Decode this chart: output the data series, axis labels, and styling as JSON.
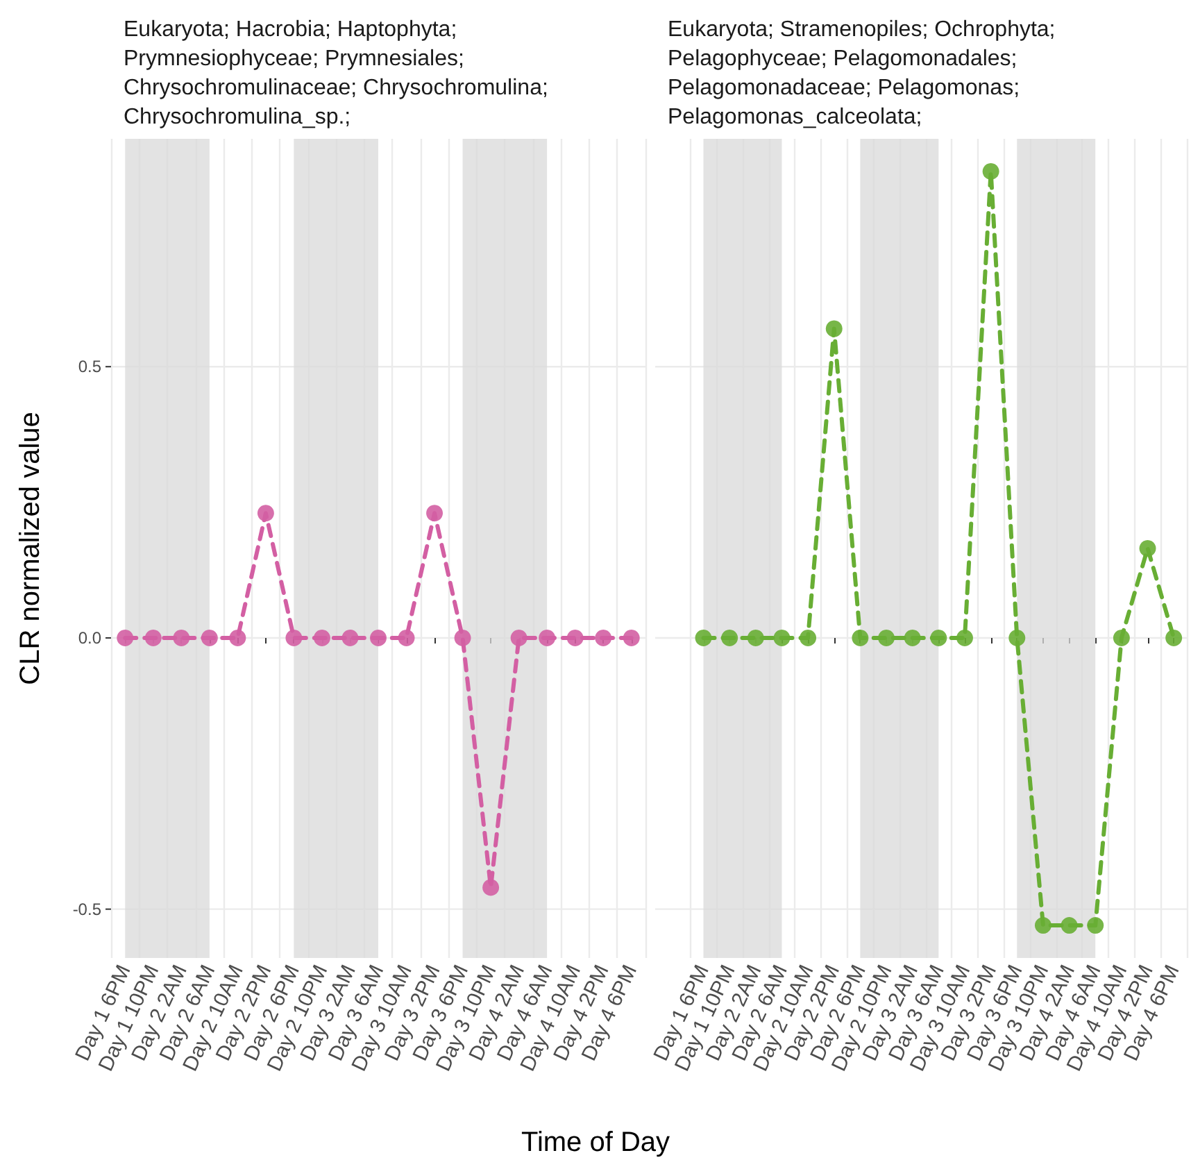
{
  "chart_data": [
    {
      "type": "line",
      "title": "Eukaryota; Hacrobia; Haptophyta; Prymnesiophyceae; Prymnesiales; Chrysochromulinaceae; Chrysochromulina; Chrysochromulina_sp.;",
      "xlabel": "Time of Day",
      "ylabel": "CLR normalized value",
      "categories": [
        "Day 1 6PM",
        "Day 1 10PM",
        "Day 2 2AM",
        "Day 2 6AM",
        "Day 2 10AM",
        "Day 2 2PM",
        "Day 2 6PM",
        "Day 2 10PM",
        "Day 3 2AM",
        "Day 3 6AM",
        "Day 3 10AM",
        "Day 3 2PM",
        "Day 3 6PM",
        "Day 3 10PM",
        "Day 4 2AM",
        "Day 4 6AM",
        "Day 4 10AM",
        "Day 4 2PM",
        "Day 4 6PM"
      ],
      "series": [
        {
          "color": "#d35fa3",
          "values": [
            0,
            0,
            0,
            0,
            0,
            0.23,
            0,
            0,
            0,
            0,
            0,
            0.23,
            0,
            -0.46,
            0,
            0,
            0,
            0,
            0
          ]
        }
      ],
      "ylim": [
        -0.59,
        0.92
      ],
      "yticks": [
        -0.5,
        {
          "value": 0,
          "label": "0.0"
        },
        0.5
      ],
      "grid": true,
      "marker": "circle",
      "line_style": "dashed",
      "bands": [
        {
          "axis": "x",
          "from": "Day 1 6PM",
          "to": "Day 2 6AM",
          "color": "#d9d9d9"
        },
        {
          "axis": "x",
          "from": "Day 2 6PM",
          "to": "Day 3 6AM",
          "color": "#d9d9d9"
        },
        {
          "axis": "x",
          "from": "Day 3 6PM",
          "to": "Day 4 6AM",
          "color": "#d9d9d9"
        }
      ]
    },
    {
      "type": "line",
      "title": "Eukaryota; Stramenopiles; Ochrophyta; Pelagophyceae; Pelagomonadales; Pelagomonadaceae; Pelagomonas; Pelagomonas_calceolata;",
      "categories": [
        "Day 1 6PM",
        "Day 1 10PM",
        "Day 2 2AM",
        "Day 2 6AM",
        "Day 2 10AM",
        "Day 2 2PM",
        "Day 2 6PM",
        "Day 2 10PM",
        "Day 3 2AM",
        "Day 3 6AM",
        "Day 3 10AM",
        "Day 3 2PM",
        "Day 3 6PM",
        "Day 3 10PM",
        "Day 4 2AM",
        "Day 4 6AM",
        "Day 4 10AM",
        "Day 4 2PM",
        "Day 4 6PM"
      ],
      "series": [
        {
          "color": "#68ae34",
          "values": [
            0,
            0,
            0,
            0,
            0,
            0.57,
            0,
            0,
            0,
            0,
            0,
            0.86,
            0,
            -0.53,
            -0.53,
            -0.53,
            0,
            0.165,
            0
          ]
        }
      ],
      "ylim": [
        -0.59,
        0.92
      ],
      "yticks": [
        -0.5,
        0,
        0.5
      ],
      "grid": true,
      "marker": "circle",
      "line_style": "dashed",
      "tick_labels": "x",
      "bands": [
        {
          "axis": "x",
          "from": "Day 1 6PM",
          "to": "Day 2 6AM",
          "color": "#d9d9d9"
        },
        {
          "axis": "x",
          "from": "Day 2 6PM",
          "to": "Day 3 6AM",
          "color": "#d9d9d9"
        },
        {
          "axis": "x",
          "from": "Day 3 6PM",
          "to": "Day 4 6AM",
          "color": "#d9d9d9"
        }
      ]
    }
  ]
}
